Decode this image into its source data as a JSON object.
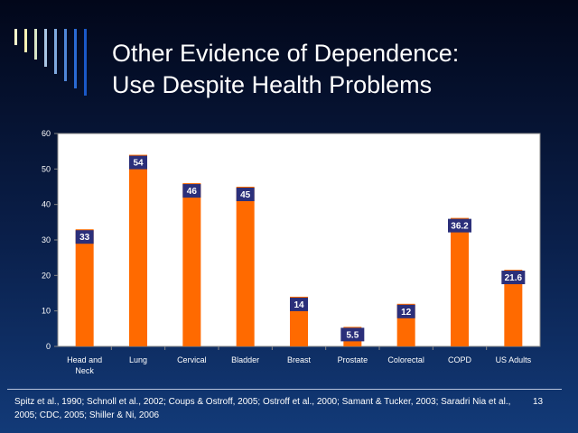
{
  "slide": {
    "title_line1": "Other Evidence of Dependence:",
    "title_line2": "Use Despite Health Problems",
    "citation": "Spitz et al., 1990; Schnoll et al., 2002; Coups & Ostroff, 2005; Ostroff et al., 2000; Samant & Tucker, 2003; Saradri Nia et al., 2005; CDC, 2005; Shiller & Ni, 2006",
    "page_number": "13"
  },
  "colors": {
    "bar": "#ff6a00",
    "label_box": "#2b2f7a",
    "plot_background": "#ffffff",
    "deco_stripes": [
      "#ffffcc",
      "#fff2b3",
      "#d9e6c6",
      "#a9c6e4",
      "#7fa9de",
      "#4f86d8",
      "#2a6ad4",
      "#1a58c8"
    ]
  },
  "chart_data": {
    "type": "bar",
    "categories": [
      "Head and Neck",
      "Lung",
      "Cervical",
      "Bladder",
      "Breast",
      "Prostate",
      "Colorectal",
      "COPD",
      "US Adults"
    ],
    "category_lines": [
      [
        "Head and",
        "Neck"
      ],
      [
        "Lung"
      ],
      [
        "Cervical"
      ],
      [
        "Bladder"
      ],
      [
        "Breast"
      ],
      [
        "Prostate"
      ],
      [
        "Colorectal"
      ],
      [
        "COPD"
      ],
      [
        "US Adults"
      ]
    ],
    "values": [
      33,
      54,
      46,
      45,
      14,
      5.5,
      12,
      36.2,
      21.6
    ],
    "data_labels": [
      "33",
      "54",
      "46",
      "45",
      "14",
      "5.5",
      "12",
      "36.2",
      "21.6"
    ],
    "yticks": [
      0,
      10,
      20,
      30,
      40,
      50,
      60
    ],
    "ylim": [
      0,
      60
    ],
    "title": "",
    "xlabel": "",
    "ylabel": "",
    "grid": false,
    "legend": "none"
  }
}
